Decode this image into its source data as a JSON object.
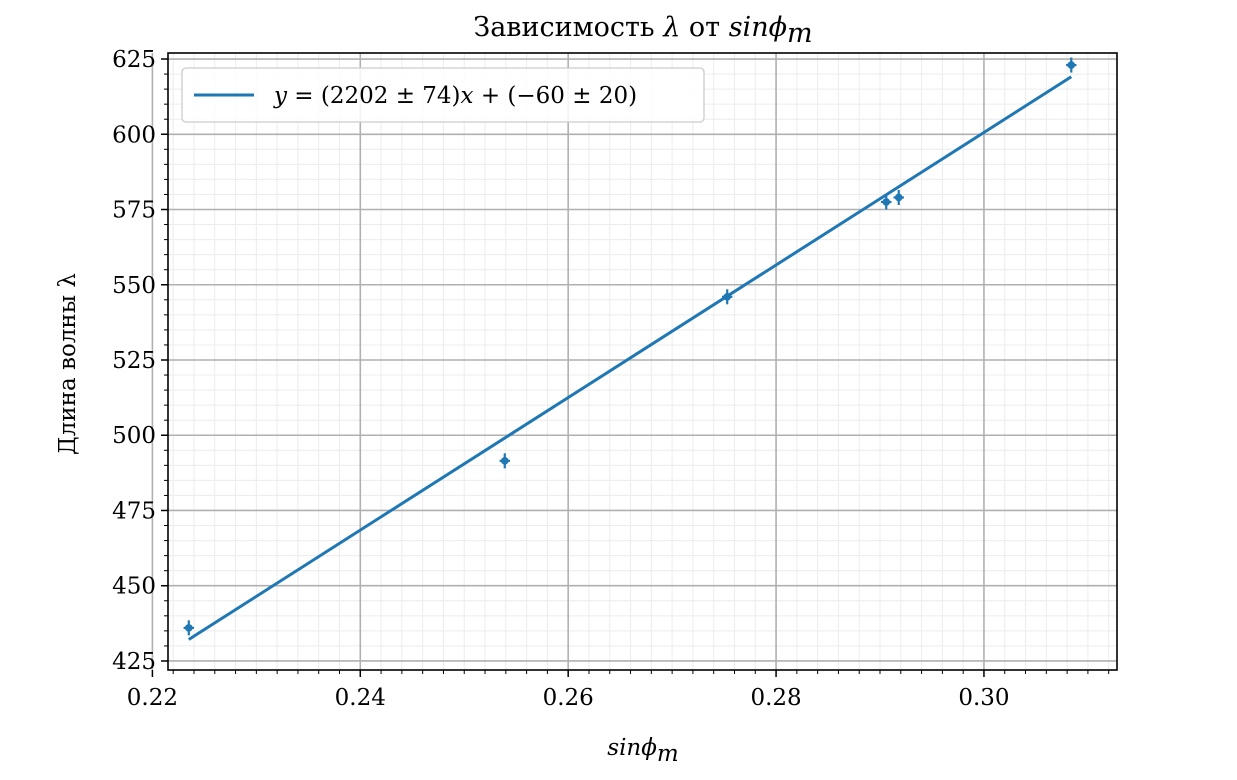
{
  "chart_data": {
    "type": "scatter",
    "title": "Зависимость λ от sinϕm",
    "title_parts": {
      "text": "Зависимость ",
      "lambda": "λ",
      "mid": " от ",
      "func": "sinϕ",
      "sub": "m"
    },
    "xlabel": "sinϕm",
    "xlabel_parts": {
      "func": "sinϕ",
      "sub": "m"
    },
    "ylabel": "Длина волны  λ",
    "xlim": [
      0.2215,
      0.3128
    ],
    "ylim": [
      422,
      627
    ],
    "x_ticks": [
      0.22,
      0.24,
      0.26,
      0.28,
      0.3
    ],
    "x_tick_labels": [
      "0.22",
      "0.24",
      "0.26",
      "0.28",
      "0.30"
    ],
    "y_ticks": [
      425,
      450,
      475,
      500,
      525,
      550,
      575,
      600,
      625
    ],
    "y_tick_labels": [
      "425",
      "450",
      "475",
      "500",
      "525",
      "550",
      "575",
      "600",
      "625"
    ],
    "x_minor_step": 0.002,
    "y_minor_step": 5,
    "grid": true,
    "minor_grid": true,
    "legend_position": "top-left",
    "colors": {
      "series": "#1f77b4",
      "major_grid": "#b0b0b0",
      "minor_grid": "#ececec"
    },
    "points": [
      {
        "x": 0.2235,
        "y": 436,
        "xerr": 0.0005,
        "yerr": 2.5
      },
      {
        "x": 0.2539,
        "y": 491.5,
        "xerr": 0.0005,
        "yerr": 2.5
      },
      {
        "x": 0.2753,
        "y": 546,
        "xerr": 0.0005,
        "yerr": 2.5
      },
      {
        "x": 0.2906,
        "y": 577.5,
        "xerr": 0.0005,
        "yerr": 2.5
      },
      {
        "x": 0.2918,
        "y": 579,
        "xerr": 0.0005,
        "yerr": 2.5
      },
      {
        "x": 0.3084,
        "y": 623,
        "xerr": 0.0005,
        "yerr": 2.5
      }
    ],
    "fit": {
      "slope": 2202,
      "intercept": -60,
      "x_range": [
        0.2235,
        0.3084
      ],
      "label": "y = (2202 ± 74)x + (−60 ± 20)",
      "label_parts": {
        "y": "y",
        "eq": " = (2202 ± 74)",
        "x": "x",
        "rest": " + (−60 ± 20)"
      }
    }
  }
}
